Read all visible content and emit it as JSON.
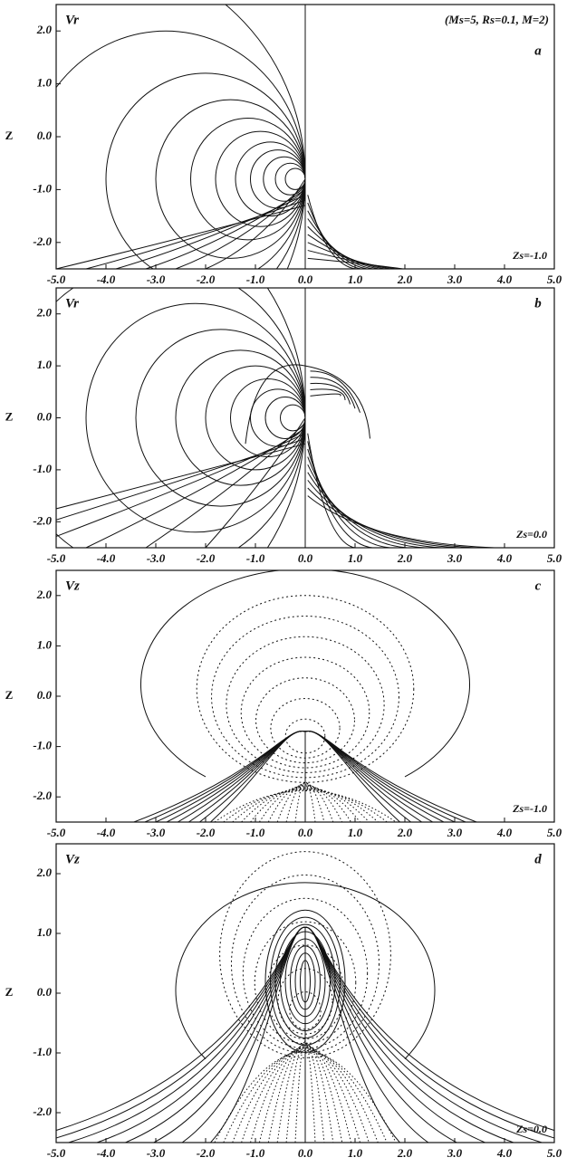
{
  "chart_data": [
    {
      "type": "contour",
      "title": "Vr",
      "subtitle": "(Ms=5, Rs=0.1, M=2)",
      "panel_label": "a",
      "annotation": "Zs=-1.0",
      "ylabel": "Z",
      "xlim": [
        -5,
        5
      ],
      "ylim": [
        -2.5,
        2.5
      ],
      "xticks": [
        {
          "value": -5,
          "label": "-5.0"
        },
        {
          "value": -4,
          "label": "-4.0"
        },
        {
          "value": -3,
          "label": "-3.0"
        },
        {
          "value": -2,
          "label": "-2.0"
        },
        {
          "value": -1,
          "label": "-1.0"
        },
        {
          "value": 0,
          "label": "0.0"
        },
        {
          "value": 1,
          "label": "1.0"
        },
        {
          "value": 2,
          "label": "2.0"
        },
        {
          "value": 3,
          "label": "3.0"
        },
        {
          "value": 4,
          "label": "4.0"
        },
        {
          "value": 5,
          "label": "5.0"
        }
      ],
      "yticks": [
        {
          "value": 2,
          "label": "2.0"
        },
        {
          "value": 1,
          "label": "1.0"
        },
        {
          "value": 0,
          "label": "0.0"
        },
        {
          "value": -1,
          "label": "-1.0"
        },
        {
          "value": -2,
          "label": "-2.0"
        }
      ]
    },
    {
      "type": "contour",
      "title": "Vr",
      "panel_label": "b",
      "annotation": "Zs=0.0",
      "ylabel": "Z",
      "xlim": [
        -5,
        5
      ],
      "ylim": [
        -2.5,
        2.5
      ],
      "xticks": [
        {
          "value": -5,
          "label": "-5.0"
        },
        {
          "value": -4,
          "label": "-4.0"
        },
        {
          "value": -3,
          "label": "-3.0"
        },
        {
          "value": -2,
          "label": "-2.0"
        },
        {
          "value": -1,
          "label": "-1.0"
        },
        {
          "value": 0,
          "label": "0.0"
        },
        {
          "value": 1,
          "label": "1.0"
        },
        {
          "value": 2,
          "label": "2.0"
        },
        {
          "value": 3,
          "label": "3.0"
        },
        {
          "value": 4,
          "label": "4.0"
        },
        {
          "value": 5,
          "label": "5.0"
        }
      ],
      "yticks": [
        {
          "value": 2,
          "label": "2.0"
        },
        {
          "value": 1,
          "label": "1.0"
        },
        {
          "value": 0,
          "label": "0.0"
        },
        {
          "value": -1,
          "label": "-1.0"
        },
        {
          "value": -2,
          "label": "-2.0"
        }
      ]
    },
    {
      "type": "contour",
      "title": "Vz",
      "panel_label": "c",
      "annotation": "Zs=-1.0",
      "ylabel": "Z",
      "xlim": [
        -5,
        5
      ],
      "ylim": [
        -2.5,
        2.5
      ],
      "xticks": [
        {
          "value": -5,
          "label": "-5.0"
        },
        {
          "value": -4,
          "label": "-4.0"
        },
        {
          "value": -3,
          "label": "-3.0"
        },
        {
          "value": -2,
          "label": "-2.0"
        },
        {
          "value": -1,
          "label": "-1.0"
        },
        {
          "value": 0,
          "label": "0.0"
        },
        {
          "value": 1,
          "label": "1.0"
        },
        {
          "value": 2,
          "label": "2.0"
        },
        {
          "value": 3,
          "label": "3.0"
        },
        {
          "value": 4,
          "label": "4.0"
        },
        {
          "value": 5,
          "label": "5.0"
        }
      ],
      "yticks": [
        {
          "value": 2,
          "label": "2.0"
        },
        {
          "value": 1,
          "label": "1.0"
        },
        {
          "value": 0,
          "label": "0.0"
        },
        {
          "value": -1,
          "label": "-1.0"
        },
        {
          "value": -2,
          "label": "-2.0"
        }
      ]
    },
    {
      "type": "contour",
      "title": "Vz",
      "panel_label": "d",
      "annotation": "Zs=0.0",
      "ylabel": "Z",
      "xlim": [
        -5,
        5
      ],
      "ylim": [
        -2.5,
        2.5
      ],
      "xticks": [
        {
          "value": -5,
          "label": "-5.0"
        },
        {
          "value": -4,
          "label": "-4.0"
        },
        {
          "value": -3,
          "label": "-3.0"
        },
        {
          "value": -2,
          "label": "-2.0"
        },
        {
          "value": -1,
          "label": "-1.0"
        },
        {
          "value": 0,
          "label": "0.0"
        },
        {
          "value": 1,
          "label": "1.0"
        },
        {
          "value": 2,
          "label": "2.0"
        },
        {
          "value": 3,
          "label": "3.0"
        },
        {
          "value": 4,
          "label": "4.0"
        },
        {
          "value": 5,
          "label": "5.0"
        }
      ],
      "yticks": [
        {
          "value": 2,
          "label": "2.0"
        },
        {
          "value": 1,
          "label": "1.0"
        },
        {
          "value": 0,
          "label": "0.0"
        },
        {
          "value": -1,
          "label": "-1.0"
        },
        {
          "value": -2,
          "label": "-2.0"
        }
      ]
    }
  ]
}
